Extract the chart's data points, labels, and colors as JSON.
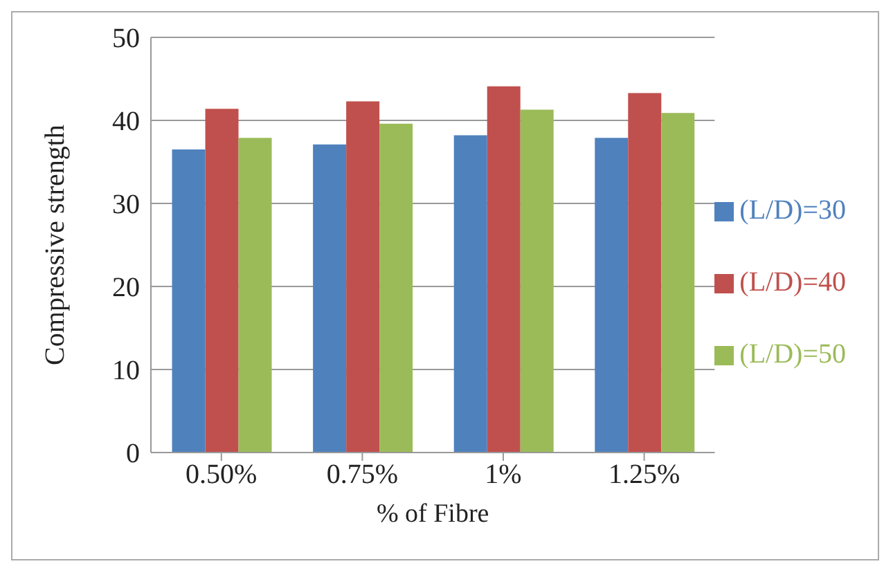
{
  "chart_data": {
    "type": "bar",
    "xlabel": "% of Fibre",
    "ylabel": "Compressive strength",
    "categories": [
      "0.50%",
      "0.75%",
      "1%",
      "1.25%"
    ],
    "series": [
      {
        "name": "(L/D)=30",
        "color": "#4f81bd",
        "values": [
          36.5,
          37.1,
          38.2,
          37.9
        ]
      },
      {
        "name": "(L/D)=40",
        "color": "#c0504d",
        "values": [
          41.4,
          42.3,
          44.1,
          43.3
        ]
      },
      {
        "name": "(L/D)=50",
        "color": "#9bbb59",
        "values": [
          37.9,
          39.6,
          41.3,
          40.9
        ]
      }
    ],
    "ylim": [
      0,
      50
    ],
    "yticks": [
      0,
      10,
      20,
      30,
      40,
      50
    ],
    "grid": "y",
    "legend": "right"
  }
}
